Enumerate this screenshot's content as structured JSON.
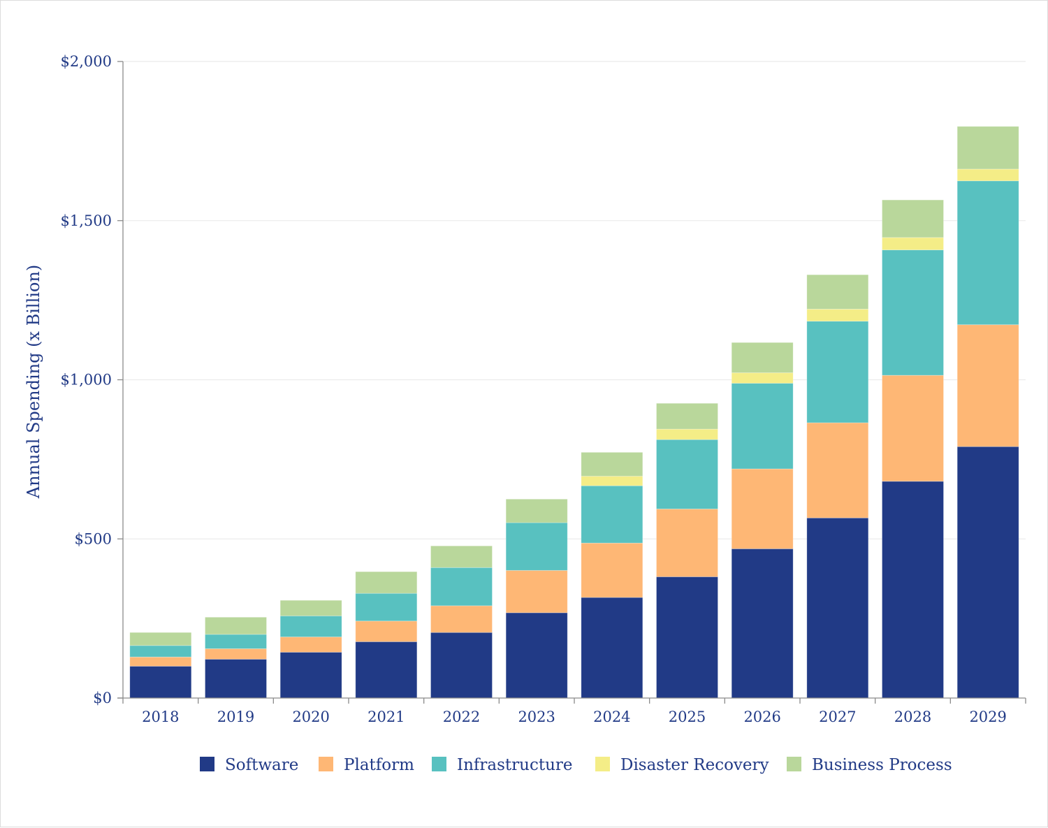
{
  "chart_data": {
    "type": "bar",
    "stacked": true,
    "title": "",
    "xlabel": "",
    "ylabel": "Annual Spending (x Billion)",
    "ylim": [
      0,
      2000
    ],
    "yticks": [
      0,
      500,
      1000,
      1500,
      2000
    ],
    "ytick_labels": [
      "$0",
      "$500",
      "$1,000",
      "$1,500",
      "$2,000"
    ],
    "grid": "horizontal",
    "legend_position": "bottom-center",
    "categories": [
      "2018",
      "2019",
      "2020",
      "2021",
      "2022",
      "2023",
      "2024",
      "2025",
      "2026",
      "2027",
      "2028",
      "2029"
    ],
    "series": [
      {
        "name": "Software",
        "color": "#213a86",
        "values": [
          100,
          122,
          144,
          177,
          206,
          268,
          316,
          381,
          469,
          566,
          681,
          790
        ]
      },
      {
        "name": "Platform",
        "color": "#feb775",
        "values": [
          29,
          33,
          48,
          65,
          84,
          133,
          171,
          213,
          251,
          299,
          333,
          383
        ]
      },
      {
        "name": "Infrastructure",
        "color": "#58c1c0",
        "values": [
          36,
          45,
          66,
          87,
          120,
          150,
          180,
          218,
          269,
          319,
          394,
          452
        ]
      },
      {
        "name": "Disaster Recovery",
        "color": "#f4ed87",
        "values": [
          0,
          0,
          0,
          0,
          0,
          0,
          30,
          33,
          33,
          38,
          39,
          37
        ]
      },
      {
        "name": "Business Process",
        "color": "#b9d79b",
        "values": [
          41,
          54,
          49,
          68,
          68,
          74,
          75,
          81,
          95,
          108,
          118,
          134
        ]
      }
    ]
  },
  "colors": {
    "text": "#213a86",
    "axis": "#8a8a8a",
    "grid": "#ebebeb"
  }
}
